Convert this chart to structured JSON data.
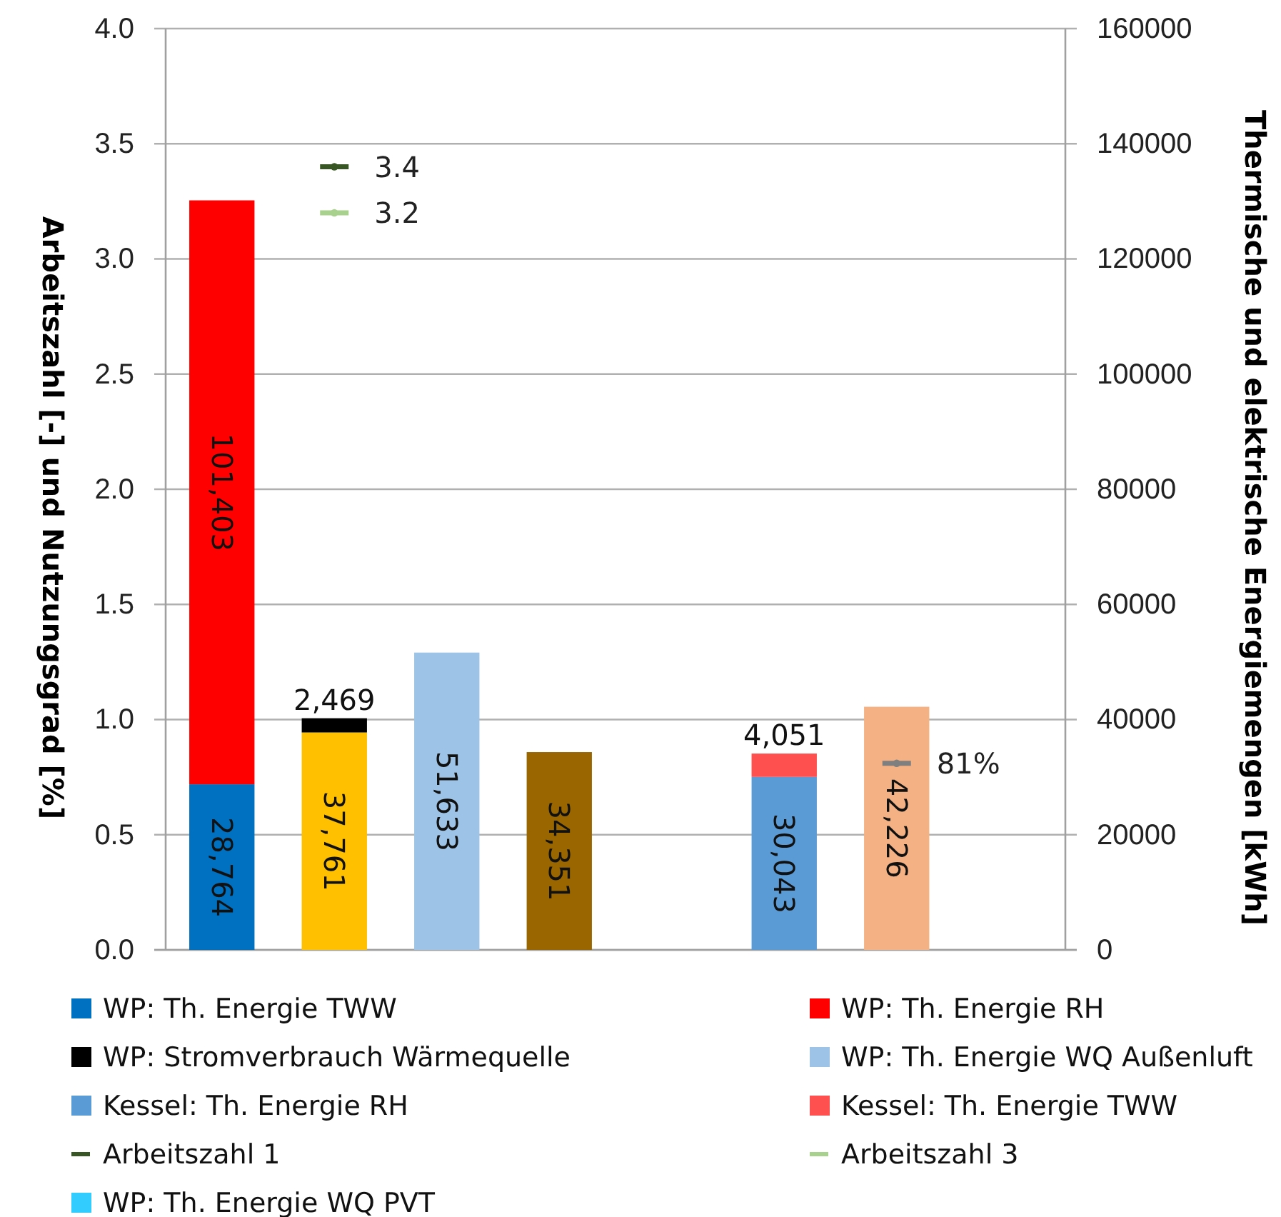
{
  "chart_data": {
    "type": "bar",
    "stacked": true,
    "ylabel": "Arbeitszahl [-] und Nutzungsgrad [%]",
    "y2label": "Thermische und elektrische Energiemengen [kWh]",
    "categories": [
      null,
      null,
      null,
      null,
      null,
      null,
      null,
      null
    ],
    "ylim": [
      0,
      4
    ],
    "yticks": [
      {
        "value": 0,
        "label": "0.0"
      },
      0.5,
      {
        "value": 1,
        "label": "1.0"
      },
      1.5,
      {
        "value": 2,
        "label": "2.0"
      },
      2.5,
      {
        "value": 3,
        "label": "3.0"
      },
      3.5,
      {
        "value": 4,
        "label": "4.0"
      }
    ],
    "y2lim": [
      0,
      160000
    ],
    "y2ticks": [
      0,
      20000,
      40000,
      60000,
      80000,
      100000,
      120000,
      140000,
      160000
    ],
    "grid": "y",
    "legend": "bottom",
    "series": [
      {
        "name": "WP: Th. Energie TWW",
        "color": "#0070c0",
        "axis": "y2",
        "values": [
          28764,
          null,
          null,
          null,
          null,
          null,
          null,
          null
        ],
        "value_labels": [
          "28,764",
          null,
          null,
          null,
          null,
          null,
          null,
          null
        ]
      },
      {
        "name": "WP: Th. Energie RH",
        "color": "#ff0000",
        "axis": "y2",
        "values": [
          101403,
          null,
          null,
          null,
          null,
          null,
          null,
          null
        ],
        "value_labels": [
          "101,403",
          null,
          null,
          null,
          null,
          null,
          null,
          null
        ]
      },
      {
        "color": "#ffc000",
        "axis": "y2",
        "values": [
          null,
          37761,
          null,
          null,
          null,
          null,
          null,
          null
        ],
        "value_labels": [
          null,
          "37,761",
          null,
          null,
          null,
          null,
          null,
          null
        ]
      },
      {
        "name": "WP: Stromverbrauch Wärmequelle",
        "color": "#000000",
        "axis": "y2",
        "values": [
          null,
          2469,
          null,
          null,
          null,
          null,
          null,
          null
        ],
        "value_labels": [
          null,
          "2,469",
          null,
          null,
          null,
          null,
          null,
          null
        ]
      },
      {
        "name": "WP: Th. Energie WQ Außenluft",
        "color": "#9dc3e6",
        "axis": "y2",
        "values": [
          null,
          null,
          51633,
          null,
          null,
          null,
          null,
          null
        ],
        "value_labels": [
          null,
          null,
          "51,633",
          null,
          null,
          null,
          null,
          null
        ]
      },
      {
        "color": "#996600",
        "axis": "y2",
        "values": [
          null,
          null,
          null,
          34351,
          null,
          null,
          null,
          null
        ],
        "value_labels": [
          null,
          null,
          null,
          "34,351",
          null,
          null,
          null,
          null
        ]
      },
      {
        "name": "Kessel: Th. Energie RH",
        "color": "#5b9bd5",
        "axis": "y2",
        "values": [
          null,
          null,
          null,
          null,
          null,
          30043,
          null,
          null
        ],
        "value_labels": [
          null,
          null,
          null,
          null,
          null,
          "30,043",
          null,
          null
        ]
      },
      {
        "name": "Kessel: Th. Energie TWW",
        "color": "#ff5050",
        "axis": "y2",
        "values": [
          null,
          null,
          null,
          null,
          null,
          4051,
          null,
          null
        ],
        "value_labels": [
          null,
          null,
          null,
          null,
          null,
          "4,051",
          null,
          null
        ]
      },
      {
        "color": "#f4b183",
        "axis": "y2",
        "values": [
          null,
          null,
          null,
          null,
          null,
          null,
          42226,
          null
        ],
        "value_labels": [
          null,
          null,
          null,
          null,
          null,
          null,
          "42,226",
          null
        ]
      },
      {
        "name": "Arbeitszahl 1",
        "type": "line",
        "marker": "circle",
        "color": "#375623",
        "axis": "y",
        "values": [
          null,
          3.4,
          null,
          null,
          null,
          null,
          null,
          null
        ],
        "value_labels": [
          null,
          "3.4",
          null,
          null,
          null,
          null,
          null,
          null
        ]
      },
      {
        "name": "Arbeitszahl 3",
        "type": "line",
        "marker": "circle",
        "color": "#a9d18e",
        "axis": "y",
        "values": [
          null,
          3.2,
          null,
          null,
          null,
          null,
          null,
          null
        ],
        "value_labels": [
          null,
          "3.2",
          null,
          null,
          null,
          null,
          null,
          null
        ]
      },
      {
        "name": "WP: Th. Energie WQ PVT",
        "color": "#33ccff",
        "axis": "y2",
        "values": [
          null,
          null,
          null,
          null,
          null,
          null,
          null,
          null
        ]
      },
      {
        "type": "line",
        "marker": "circle",
        "color": "#7f7f7f",
        "axis": "y",
        "values": [
          null,
          null,
          null,
          null,
          null,
          null,
          0.81,
          null
        ],
        "value_labels": [
          null,
          null,
          null,
          null,
          null,
          null,
          "81%",
          null
        ]
      }
    ]
  }
}
